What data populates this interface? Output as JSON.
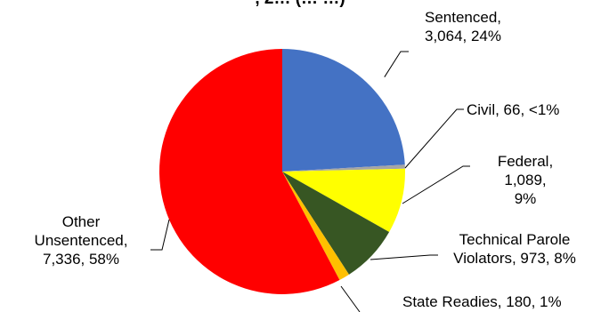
{
  "chart_data": {
    "type": "pie",
    "title": ", 2… (… …)",
    "slices": [
      {
        "name": "Sentenced",
        "value": 3064,
        "pct_label": "24%",
        "color": "#4472C4"
      },
      {
        "name": "Civil",
        "value": 66,
        "pct_label": "<1%",
        "color": "#A5A5A5"
      },
      {
        "name": "Federal",
        "value": 1089,
        "pct_label": "9%",
        "color": "#FFFF00"
      },
      {
        "name": "Technical Parole Violators",
        "value": 973,
        "pct_label": "8%",
        "color": "#375623"
      },
      {
        "name": "State Readies",
        "value": 180,
        "pct_label": "1%",
        "color": "#FFC000"
      },
      {
        "name": "Other Unsentenced",
        "value": 7336,
        "pct_label": "58%",
        "color": "#FF0000"
      }
    ],
    "labels": [
      {
        "slice": 0,
        "lines": [
          "Sentenced,",
          "3,064, 24%"
        ]
      },
      {
        "slice": 1,
        "lines": [
          "Civil, 66, <1%"
        ]
      },
      {
        "slice": 2,
        "lines": [
          "Federal,",
          "1,089,",
          "9%"
        ]
      },
      {
        "slice": 3,
        "lines": [
          "Technical Parole",
          "Violators, 973, 8%"
        ]
      },
      {
        "slice": 4,
        "lines": [
          "State Readies, 180, 1%"
        ]
      },
      {
        "slice": 5,
        "lines": [
          "Other",
          "Unsentenced,",
          "7,336, 58%"
        ]
      }
    ],
    "legend": "none",
    "start_angle": "12 o'clock, clockwise"
  }
}
